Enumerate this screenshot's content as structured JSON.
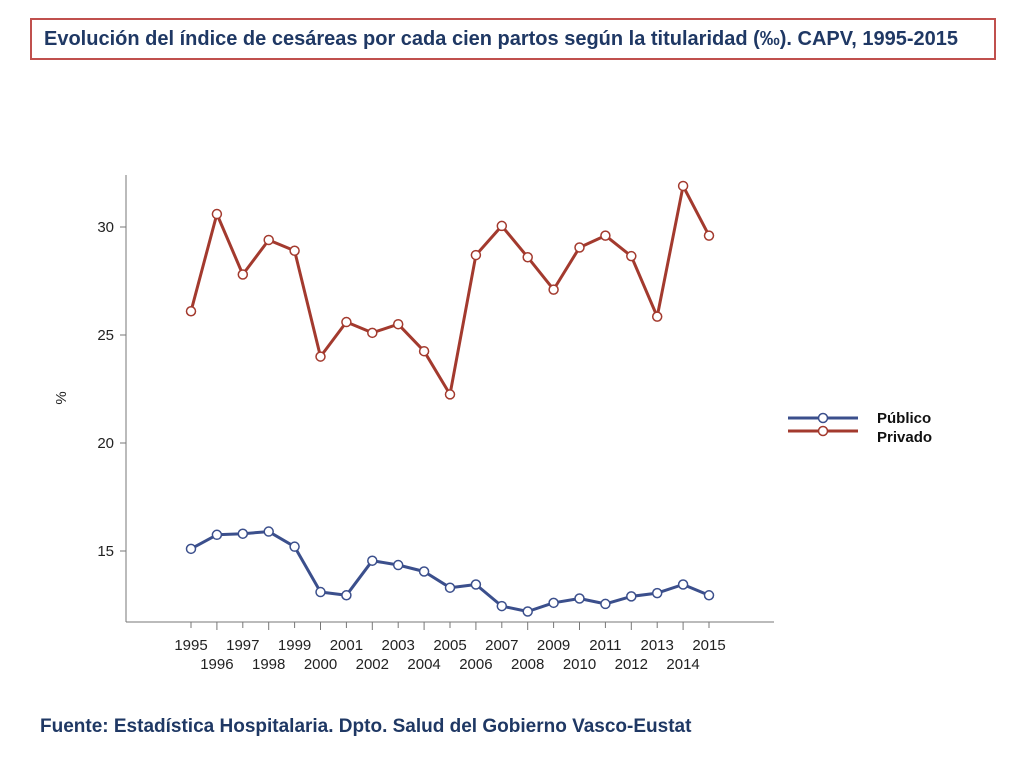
{
  "title": "Evolución del índice de cesáreas por cada cien partos según la titularidad (‰). CAPV, 1995-2015",
  "source": "Fuente: Estadística Hospitalaria. Dpto. Salud del Gobierno Vasco-Eustat",
  "colors": {
    "publico": "#3b4f8c",
    "privado": "#a33a2e",
    "axis": "#777777",
    "title_border": "#c0504d"
  },
  "chart_data": {
    "type": "line",
    "title": "Evolución del índice de cesáreas por cada cien partos según la titularidad (‰). CAPV, 1995-2015",
    "xlabel": "",
    "ylabel": "%",
    "ylim": [
      12,
      32.5
    ],
    "yticks": [
      15,
      20,
      25,
      30
    ],
    "x": [
      1995,
      1996,
      1997,
      1998,
      1999,
      2000,
      2001,
      2002,
      2003,
      2004,
      2005,
      2006,
      2007,
      2008,
      2009,
      2010,
      2011,
      2012,
      2013,
      2014,
      2015
    ],
    "series": [
      {
        "name": "Público",
        "values": [
          15.1,
          15.75,
          15.8,
          15.9,
          15.2,
          13.1,
          12.95,
          14.55,
          14.35,
          14.05,
          13.3,
          13.45,
          12.45,
          12.2,
          12.6,
          12.8,
          12.55,
          12.9,
          13.05,
          13.45,
          12.95
        ]
      },
      {
        "name": "Privado",
        "values": [
          26.1,
          30.6,
          27.8,
          29.4,
          28.9,
          24.0,
          25.6,
          25.1,
          25.5,
          24.25,
          22.25,
          28.7,
          30.05,
          28.6,
          27.1,
          29.05,
          29.6,
          28.65,
          25.85,
          31.9,
          29.6
        ]
      }
    ],
    "legend": "right"
  }
}
